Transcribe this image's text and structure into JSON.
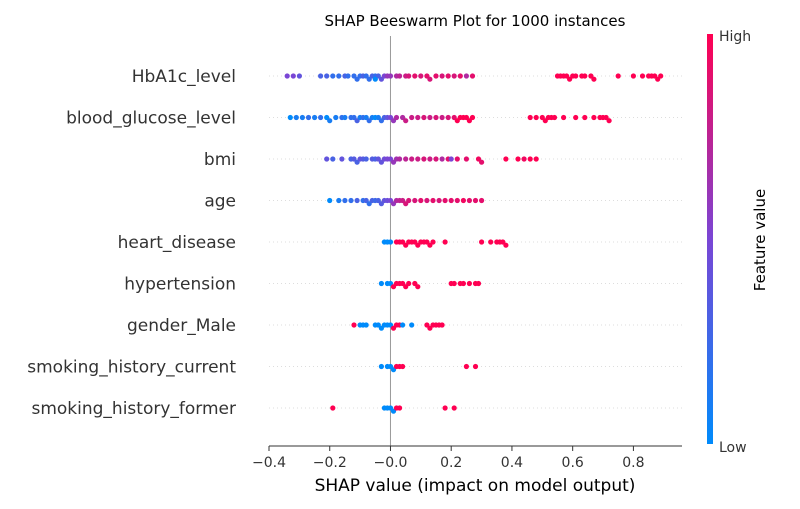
{
  "chart_data": {
    "type": "scatter",
    "subtype": "beeswarm",
    "title": "SHAP Beeswarm Plot for 1000 instances",
    "xlabel": "SHAP value (impact on model output)",
    "xlim": [
      -0.4,
      0.96
    ],
    "xticks": [
      -0.4,
      -0.2,
      0.0,
      0.2,
      0.4,
      0.6,
      0.8
    ],
    "xtick_labels": [
      "−0.4",
      "−0.2",
      "−0.0",
      "0.2",
      "0.4",
      "0.6",
      "0.8"
    ],
    "colorbar": {
      "label": "Feature value",
      "high_label": "High",
      "low_label": "Low",
      "low_color": "#008bfb",
      "high_color": "#ff0052"
    },
    "features": [
      {
        "name": "HbA1c_level",
        "points": [
          {
            "x": -0.34,
            "v": 0.5
          },
          {
            "x": -0.32,
            "v": 0.5
          },
          {
            "x": -0.3,
            "v": 0.4
          },
          {
            "x": -0.23,
            "v": 0.3
          },
          {
            "x": -0.21,
            "v": 0.3
          },
          {
            "x": -0.19,
            "v": 0.2
          },
          {
            "x": -0.17,
            "v": 0.2
          },
          {
            "x": -0.15,
            "v": 0.3
          },
          {
            "x": -0.14,
            "v": 0.2
          },
          {
            "x": -0.12,
            "v": 0.2
          },
          {
            "x": -0.11,
            "v": 0.2
          },
          {
            "x": -0.1,
            "v": 0.2
          },
          {
            "x": -0.09,
            "v": 0.3
          },
          {
            "x": -0.08,
            "v": 0.2
          },
          {
            "x": -0.07,
            "v": 0.2
          },
          {
            "x": -0.06,
            "v": 0.3
          },
          {
            "x": -0.05,
            "v": 0.2
          },
          {
            "x": -0.04,
            "v": 0.3
          },
          {
            "x": -0.03,
            "v": 0.4
          },
          {
            "x": -0.05,
            "v": 0.0
          },
          {
            "x": -0.02,
            "v": 0.5
          },
          {
            "x": -0.01,
            "v": 0.6
          },
          {
            "x": 0.0,
            "v": 0.6
          },
          {
            "x": 0.02,
            "v": 0.7
          },
          {
            "x": 0.03,
            "v": 0.75
          },
          {
            "x": 0.05,
            "v": 0.8
          },
          {
            "x": 0.06,
            "v": 0.85
          },
          {
            "x": 0.08,
            "v": 0.9
          },
          {
            "x": 0.1,
            "v": 0.85
          },
          {
            "x": 0.12,
            "v": 0.9
          },
          {
            "x": 0.13,
            "v": 0.85
          },
          {
            "x": 0.15,
            "v": 0.9
          },
          {
            "x": 0.17,
            "v": 0.85
          },
          {
            "x": 0.19,
            "v": 0.9
          },
          {
            "x": 0.21,
            "v": 0.85
          },
          {
            "x": 0.23,
            "v": 0.9
          },
          {
            "x": 0.25,
            "v": 0.7
          },
          {
            "x": 0.27,
            "v": 0.9
          },
          {
            "x": 0.55,
            "v": 1.0
          },
          {
            "x": 0.56,
            "v": 1.0
          },
          {
            "x": 0.57,
            "v": 1.0
          },
          {
            "x": 0.58,
            "v": 1.0
          },
          {
            "x": 0.59,
            "v": 1.0
          },
          {
            "x": 0.6,
            "v": 1.0
          },
          {
            "x": 0.61,
            "v": 1.0
          },
          {
            "x": 0.63,
            "v": 1.0
          },
          {
            "x": 0.64,
            "v": 1.0
          },
          {
            "x": 0.66,
            "v": 1.0
          },
          {
            "x": 0.67,
            "v": 1.0
          },
          {
            "x": 0.75,
            "v": 1.0
          },
          {
            "x": 0.8,
            "v": 1.0
          },
          {
            "x": 0.83,
            "v": 1.0
          },
          {
            "x": 0.85,
            "v": 1.0
          },
          {
            "x": 0.86,
            "v": 1.0
          },
          {
            "x": 0.87,
            "v": 1.0
          },
          {
            "x": 0.88,
            "v": 1.0
          },
          {
            "x": 0.89,
            "v": 1.0
          }
        ]
      },
      {
        "name": "blood_glucose_level",
        "points": [
          {
            "x": -0.33,
            "v": 0.0
          },
          {
            "x": -0.31,
            "v": 0.1
          },
          {
            "x": -0.29,
            "v": 0.1
          },
          {
            "x": -0.27,
            "v": 0.2
          },
          {
            "x": -0.25,
            "v": 0.1
          },
          {
            "x": -0.23,
            "v": 0.2
          },
          {
            "x": -0.21,
            "v": 0.0
          },
          {
            "x": -0.2,
            "v": 0.1
          },
          {
            "x": -0.18,
            "v": 0.1
          },
          {
            "x": -0.16,
            "v": 0.2
          },
          {
            "x": -0.15,
            "v": 0.1
          },
          {
            "x": -0.13,
            "v": 0.2
          },
          {
            "x": -0.12,
            "v": 0.2
          },
          {
            "x": -0.11,
            "v": 0.3
          },
          {
            "x": -0.1,
            "v": 0.1
          },
          {
            "x": -0.09,
            "v": 0.2
          },
          {
            "x": -0.08,
            "v": 0.1
          },
          {
            "x": -0.07,
            "v": 0.2
          },
          {
            "x": -0.06,
            "v": 0.1
          },
          {
            "x": -0.05,
            "v": 0.0
          },
          {
            "x": -0.04,
            "v": 0.1
          },
          {
            "x": -0.03,
            "v": 0.2
          },
          {
            "x": -0.02,
            "v": 0.3
          },
          {
            "x": -0.01,
            "v": 0.4
          },
          {
            "x": 0.0,
            "v": 0.5
          },
          {
            "x": 0.01,
            "v": 0.6
          },
          {
            "x": 0.02,
            "v": 0.7
          },
          {
            "x": 0.04,
            "v": 0.7
          },
          {
            "x": 0.05,
            "v": 0.8
          },
          {
            "x": 0.07,
            "v": 0.8
          },
          {
            "x": 0.09,
            "v": 0.8
          },
          {
            "x": 0.11,
            "v": 0.85
          },
          {
            "x": 0.13,
            "v": 0.8
          },
          {
            "x": 0.15,
            "v": 0.85
          },
          {
            "x": 0.17,
            "v": 0.8
          },
          {
            "x": 0.19,
            "v": 0.85
          },
          {
            "x": 0.21,
            "v": 0.9
          },
          {
            "x": 0.22,
            "v": 1.0
          },
          {
            "x": 0.23,
            "v": 1.0
          },
          {
            "x": 0.24,
            "v": 1.0
          },
          {
            "x": 0.25,
            "v": 1.0
          },
          {
            "x": 0.26,
            "v": 1.0
          },
          {
            "x": 0.27,
            "v": 1.0
          },
          {
            "x": 0.46,
            "v": 1.0
          },
          {
            "x": 0.48,
            "v": 1.0
          },
          {
            "x": 0.5,
            "v": 1.0
          },
          {
            "x": 0.51,
            "v": 1.0
          },
          {
            "x": 0.52,
            "v": 1.0
          },
          {
            "x": 0.53,
            "v": 1.0
          },
          {
            "x": 0.54,
            "v": 1.0
          },
          {
            "x": 0.57,
            "v": 1.0
          },
          {
            "x": 0.61,
            "v": 1.0
          },
          {
            "x": 0.64,
            "v": 1.0
          },
          {
            "x": 0.67,
            "v": 1.0
          },
          {
            "x": 0.69,
            "v": 1.0
          },
          {
            "x": 0.7,
            "v": 1.0
          },
          {
            "x": 0.71,
            "v": 1.0
          },
          {
            "x": 0.72,
            "v": 1.0
          }
        ]
      },
      {
        "name": "bmi",
        "points": [
          {
            "x": -0.21,
            "v": 0.4
          },
          {
            "x": -0.19,
            "v": 0.3
          },
          {
            "x": -0.16,
            "v": 0.4
          },
          {
            "x": -0.13,
            "v": 0.3
          },
          {
            "x": -0.12,
            "v": 0.35
          },
          {
            "x": -0.11,
            "v": 0.3
          },
          {
            "x": -0.1,
            "v": 0.4
          },
          {
            "x": -0.09,
            "v": 0.35
          },
          {
            "x": -0.08,
            "v": 0.3
          },
          {
            "x": -0.06,
            "v": 0.35
          },
          {
            "x": -0.05,
            "v": 0.3
          },
          {
            "x": -0.04,
            "v": 0.4
          },
          {
            "x": -0.03,
            "v": 0.4
          },
          {
            "x": -0.02,
            "v": 0.45
          },
          {
            "x": -0.01,
            "v": 0.5
          },
          {
            "x": 0.0,
            "v": 0.5
          },
          {
            "x": 0.01,
            "v": 0.6
          },
          {
            "x": 0.02,
            "v": 0.65
          },
          {
            "x": 0.03,
            "v": 0.7
          },
          {
            "x": 0.05,
            "v": 0.75
          },
          {
            "x": 0.07,
            "v": 0.8
          },
          {
            "x": 0.09,
            "v": 0.8
          },
          {
            "x": 0.11,
            "v": 0.85
          },
          {
            "x": 0.13,
            "v": 0.8
          },
          {
            "x": 0.15,
            "v": 0.85
          },
          {
            "x": 0.17,
            "v": 0.7
          },
          {
            "x": 0.19,
            "v": 0.9
          },
          {
            "x": 0.2,
            "v": 0.5
          },
          {
            "x": 0.22,
            "v": 0.9
          },
          {
            "x": 0.25,
            "v": 0.9
          },
          {
            "x": 0.29,
            "v": 0.95
          },
          {
            "x": 0.3,
            "v": 0.9
          },
          {
            "x": 0.38,
            "v": 1.0
          },
          {
            "x": 0.42,
            "v": 1.0
          },
          {
            "x": 0.44,
            "v": 0.95
          },
          {
            "x": 0.46,
            "v": 1.0
          },
          {
            "x": 0.48,
            "v": 1.0
          }
        ]
      },
      {
        "name": "age",
        "points": [
          {
            "x": -0.2,
            "v": 0.0
          },
          {
            "x": -0.17,
            "v": 0.1
          },
          {
            "x": -0.15,
            "v": 0.2
          },
          {
            "x": -0.13,
            "v": 0.2
          },
          {
            "x": -0.11,
            "v": 0.3
          },
          {
            "x": -0.09,
            "v": 0.2
          },
          {
            "x": -0.08,
            "v": 0.3
          },
          {
            "x": -0.07,
            "v": 0.2
          },
          {
            "x": -0.06,
            "v": 0.3
          },
          {
            "x": -0.05,
            "v": 0.25
          },
          {
            "x": -0.04,
            "v": 0.3
          },
          {
            "x": -0.03,
            "v": 0.35
          },
          {
            "x": -0.02,
            "v": 0.4
          },
          {
            "x": -0.01,
            "v": 0.45
          },
          {
            "x": 0.0,
            "v": 0.5
          },
          {
            "x": 0.01,
            "v": 0.6
          },
          {
            "x": 0.02,
            "v": 0.7
          },
          {
            "x": 0.03,
            "v": 0.75
          },
          {
            "x": 0.04,
            "v": 0.8
          },
          {
            "x": 0.05,
            "v": 0.85
          },
          {
            "x": 0.06,
            "v": 0.85
          },
          {
            "x": 0.08,
            "v": 0.85
          },
          {
            "x": 0.1,
            "v": 0.9
          },
          {
            "x": 0.12,
            "v": 0.85
          },
          {
            "x": 0.14,
            "v": 0.9
          },
          {
            "x": 0.16,
            "v": 0.85
          },
          {
            "x": 0.18,
            "v": 0.9
          },
          {
            "x": 0.2,
            "v": 0.9
          },
          {
            "x": 0.22,
            "v": 0.9
          },
          {
            "x": 0.24,
            "v": 0.95
          },
          {
            "x": 0.26,
            "v": 0.9
          },
          {
            "x": 0.28,
            "v": 0.9
          },
          {
            "x": 0.3,
            "v": 0.9
          }
        ]
      },
      {
        "name": "heart_disease",
        "points": [
          {
            "x": -0.02,
            "v": 0.0
          },
          {
            "x": -0.01,
            "v": 0.0
          },
          {
            "x": 0.0,
            "v": 0.0
          },
          {
            "x": 0.02,
            "v": 1.0
          },
          {
            "x": 0.03,
            "v": 1.0
          },
          {
            "x": 0.04,
            "v": 1.0
          },
          {
            "x": 0.05,
            "v": 1.0
          },
          {
            "x": 0.06,
            "v": 1.0
          },
          {
            "x": 0.07,
            "v": 1.0
          },
          {
            "x": 0.08,
            "v": 1.0
          },
          {
            "x": 0.09,
            "v": 1.0
          },
          {
            "x": 0.1,
            "v": 1.0
          },
          {
            "x": 0.11,
            "v": 1.0
          },
          {
            "x": 0.12,
            "v": 1.0
          },
          {
            "x": 0.13,
            "v": 1.0
          },
          {
            "x": 0.14,
            "v": 1.0
          },
          {
            "x": 0.18,
            "v": 1.0
          },
          {
            "x": 0.3,
            "v": 1.0
          },
          {
            "x": 0.33,
            "v": 1.0
          },
          {
            "x": 0.35,
            "v": 1.0
          },
          {
            "x": 0.36,
            "v": 1.0
          },
          {
            "x": 0.37,
            "v": 1.0
          },
          {
            "x": 0.38,
            "v": 1.0
          }
        ]
      },
      {
        "name": "hypertension",
        "points": [
          {
            "x": -0.03,
            "v": 0.0
          },
          {
            "x": -0.01,
            "v": 0.0
          },
          {
            "x": 0.0,
            "v": 0.0
          },
          {
            "x": 0.01,
            "v": 1.0
          },
          {
            "x": 0.02,
            "v": 1.0
          },
          {
            "x": 0.03,
            "v": 1.0
          },
          {
            "x": 0.04,
            "v": 1.0
          },
          {
            "x": 0.05,
            "v": 1.0
          },
          {
            "x": 0.06,
            "v": 1.0
          },
          {
            "x": 0.08,
            "v": 1.0
          },
          {
            "x": 0.09,
            "v": 1.0
          },
          {
            "x": 0.2,
            "v": 1.0
          },
          {
            "x": 0.21,
            "v": 1.0
          },
          {
            "x": 0.23,
            "v": 1.0
          },
          {
            "x": 0.24,
            "v": 1.0
          },
          {
            "x": 0.26,
            "v": 1.0
          },
          {
            "x": 0.28,
            "v": 1.0
          },
          {
            "x": 0.29,
            "v": 1.0
          }
        ]
      },
      {
        "name": "gender_Male",
        "points": [
          {
            "x": -0.12,
            "v": 1.0
          },
          {
            "x": -0.1,
            "v": 0.0
          },
          {
            "x": -0.09,
            "v": 0.0
          },
          {
            "x": -0.08,
            "v": 0.0
          },
          {
            "x": -0.05,
            "v": 0.0
          },
          {
            "x": -0.04,
            "v": 0.0
          },
          {
            "x": -0.03,
            "v": 0.0
          },
          {
            "x": -0.02,
            "v": 0.0
          },
          {
            "x": -0.01,
            "v": 0.0
          },
          {
            "x": 0.0,
            "v": 0.0
          },
          {
            "x": 0.01,
            "v": 1.0
          },
          {
            "x": 0.02,
            "v": 1.0
          },
          {
            "x": 0.03,
            "v": 1.0
          },
          {
            "x": 0.04,
            "v": 0.0
          },
          {
            "x": 0.07,
            "v": 0.0
          },
          {
            "x": 0.12,
            "v": 1.0
          },
          {
            "x": 0.13,
            "v": 1.0
          },
          {
            "x": 0.14,
            "v": 1.0
          },
          {
            "x": 0.15,
            "v": 1.0
          },
          {
            "x": 0.16,
            "v": 1.0
          },
          {
            "x": 0.17,
            "v": 1.0
          }
        ]
      },
      {
        "name": "smoking_history_current",
        "points": [
          {
            "x": -0.03,
            "v": 0.0
          },
          {
            "x": -0.01,
            "v": 0.0
          },
          {
            "x": 0.0,
            "v": 0.0
          },
          {
            "x": 0.01,
            "v": 0.0
          },
          {
            "x": 0.02,
            "v": 1.0
          },
          {
            "x": 0.03,
            "v": 1.0
          },
          {
            "x": 0.04,
            "v": 1.0
          },
          {
            "x": 0.25,
            "v": 1.0
          },
          {
            "x": 0.28,
            "v": 1.0
          }
        ]
      },
      {
        "name": "smoking_history_former",
        "points": [
          {
            "x": -0.19,
            "v": 1.0
          },
          {
            "x": -0.02,
            "v": 0.0
          },
          {
            "x": -0.01,
            "v": 0.0
          },
          {
            "x": 0.0,
            "v": 0.0
          },
          {
            "x": 0.01,
            "v": 0.0
          },
          {
            "x": 0.02,
            "v": 1.0
          },
          {
            "x": 0.03,
            "v": 1.0
          },
          {
            "x": 0.18,
            "v": 1.0
          },
          {
            "x": 0.21,
            "v": 1.0
          }
        ]
      }
    ]
  }
}
